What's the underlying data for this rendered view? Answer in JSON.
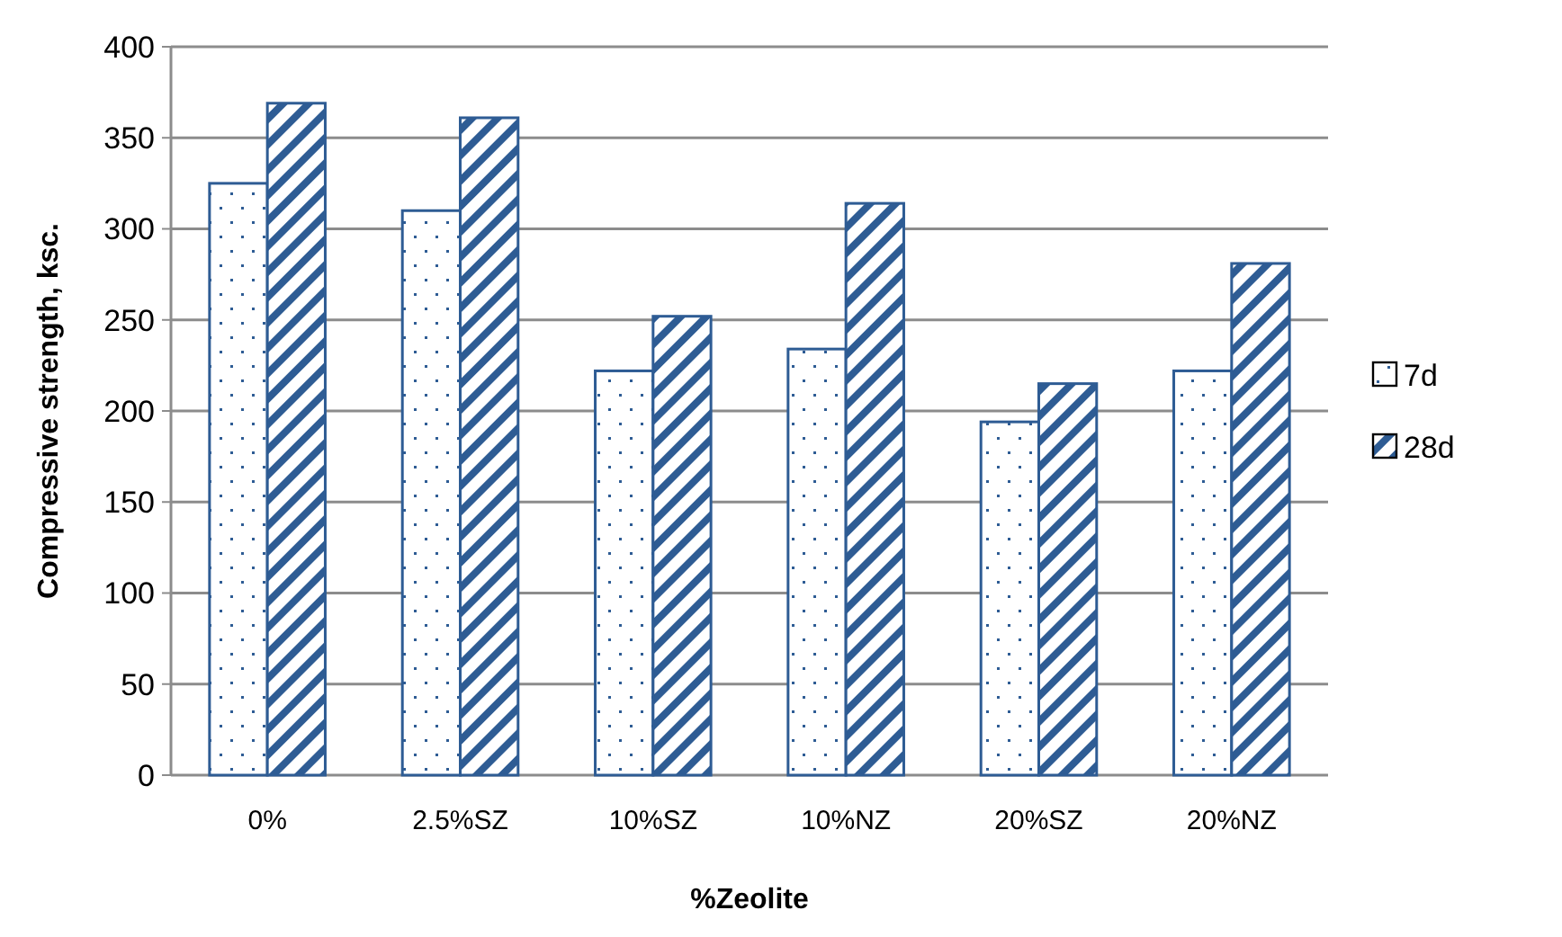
{
  "chart_data": {
    "type": "bar",
    "xlabel": "%Zeolite",
    "ylabel": "Compressive strength, ksc.",
    "categories": [
      "0%",
      "2.5%SZ",
      "10%SZ",
      "10%NZ",
      "20%SZ",
      "20%NZ"
    ],
    "series": [
      {
        "name": "7d",
        "color": "#2e5c94",
        "values": [
          325,
          310,
          222,
          234,
          194,
          222
        ]
      },
      {
        "name": "28d",
        "color": "#2e5c94",
        "values": [
          369,
          361,
          252,
          314,
          215,
          281
        ]
      }
    ],
    "ylim": [
      0,
      400
    ],
    "yticks": [
      0,
      50,
      100,
      150,
      200,
      250,
      300,
      350,
      400
    ],
    "grid": "y",
    "legend": "right"
  }
}
